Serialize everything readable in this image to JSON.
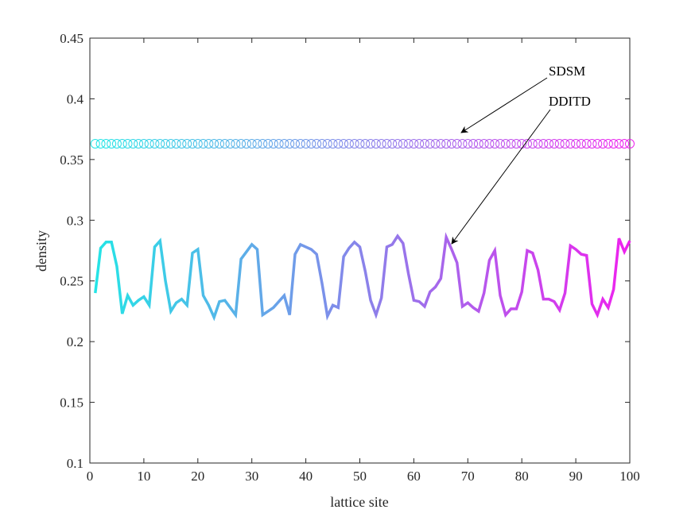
{
  "chart_data": {
    "type": "line",
    "title": "",
    "xlabel": "lattice site",
    "ylabel": "density",
    "xlim": [
      0,
      100
    ],
    "ylim": [
      0.1,
      0.45
    ],
    "x_ticks": [
      0,
      10,
      20,
      30,
      40,
      50,
      60,
      70,
      80,
      90,
      100
    ],
    "y_ticks": [
      0.1,
      0.15,
      0.2,
      0.25,
      0.3,
      0.35,
      0.4,
      0.45
    ],
    "grid": false,
    "gradient_colors": {
      "start": "#22e6e6",
      "end": "#ee22ee"
    },
    "series": [
      {
        "name": "SDSM",
        "marker": "circle",
        "x_start": 1,
        "values": [
          0.363,
          0.363,
          0.363,
          0.363,
          0.363,
          0.363,
          0.363,
          0.363,
          0.363,
          0.363,
          0.363,
          0.363,
          0.363,
          0.363,
          0.363,
          0.363,
          0.363,
          0.363,
          0.363,
          0.363,
          0.363,
          0.363,
          0.363,
          0.363,
          0.363,
          0.363,
          0.363,
          0.363,
          0.363,
          0.363,
          0.363,
          0.363,
          0.363,
          0.363,
          0.363,
          0.363,
          0.363,
          0.363,
          0.363,
          0.363,
          0.363,
          0.363,
          0.363,
          0.363,
          0.363,
          0.363,
          0.363,
          0.363,
          0.363,
          0.363,
          0.363,
          0.363,
          0.363,
          0.363,
          0.363,
          0.363,
          0.363,
          0.363,
          0.363,
          0.363,
          0.363,
          0.363,
          0.363,
          0.363,
          0.363,
          0.363,
          0.363,
          0.363,
          0.363,
          0.363,
          0.363,
          0.363,
          0.363,
          0.363,
          0.363,
          0.363,
          0.363,
          0.363,
          0.363,
          0.363,
          0.363,
          0.363,
          0.363,
          0.363,
          0.363,
          0.363,
          0.363,
          0.363,
          0.363,
          0.363,
          0.363,
          0.363,
          0.363,
          0.363,
          0.363,
          0.363,
          0.363,
          0.363,
          0.363,
          0.363
        ]
      },
      {
        "name": "DDITD",
        "marker": "none",
        "x_start": 1,
        "values": [
          0.24,
          0.277,
          0.282,
          0.282,
          0.262,
          0.223,
          0.238,
          0.23,
          0.234,
          0.237,
          0.23,
          0.278,
          0.283,
          0.25,
          0.225,
          0.232,
          0.235,
          0.23,
          0.273,
          0.276,
          0.238,
          0.23,
          0.22,
          0.233,
          0.234,
          0.228,
          0.222,
          0.268,
          0.274,
          0.28,
          0.276,
          0.222,
          0.225,
          0.228,
          0.233,
          0.238,
          0.222,
          0.272,
          0.28,
          0.278,
          0.276,
          0.272,
          0.248,
          0.221,
          0.23,
          0.228,
          0.27,
          0.277,
          0.282,
          0.278,
          0.258,
          0.234,
          0.222,
          0.236,
          0.278,
          0.28,
          0.287,
          0.281,
          0.256,
          0.234,
          0.233,
          0.229,
          0.241,
          0.245,
          0.252,
          0.286,
          0.276,
          0.265,
          0.229,
          0.232,
          0.228,
          0.225,
          0.24,
          0.267,
          0.275,
          0.238,
          0.222,
          0.227,
          0.227,
          0.241,
          0.275,
          0.273,
          0.259,
          0.235,
          0.235,
          0.233,
          0.226,
          0.24,
          0.279,
          0.276,
          0.272,
          0.271,
          0.231,
          0.222,
          0.235,
          0.228,
          0.243,
          0.285,
          0.274,
          0.283
        ]
      }
    ],
    "annotations": [
      {
        "text": "SDSM",
        "points_to_x": 68,
        "points_to_y": 0.368
      },
      {
        "text": "DDITD",
        "points_to_x": 66.5,
        "points_to_y": 0.282
      }
    ]
  }
}
